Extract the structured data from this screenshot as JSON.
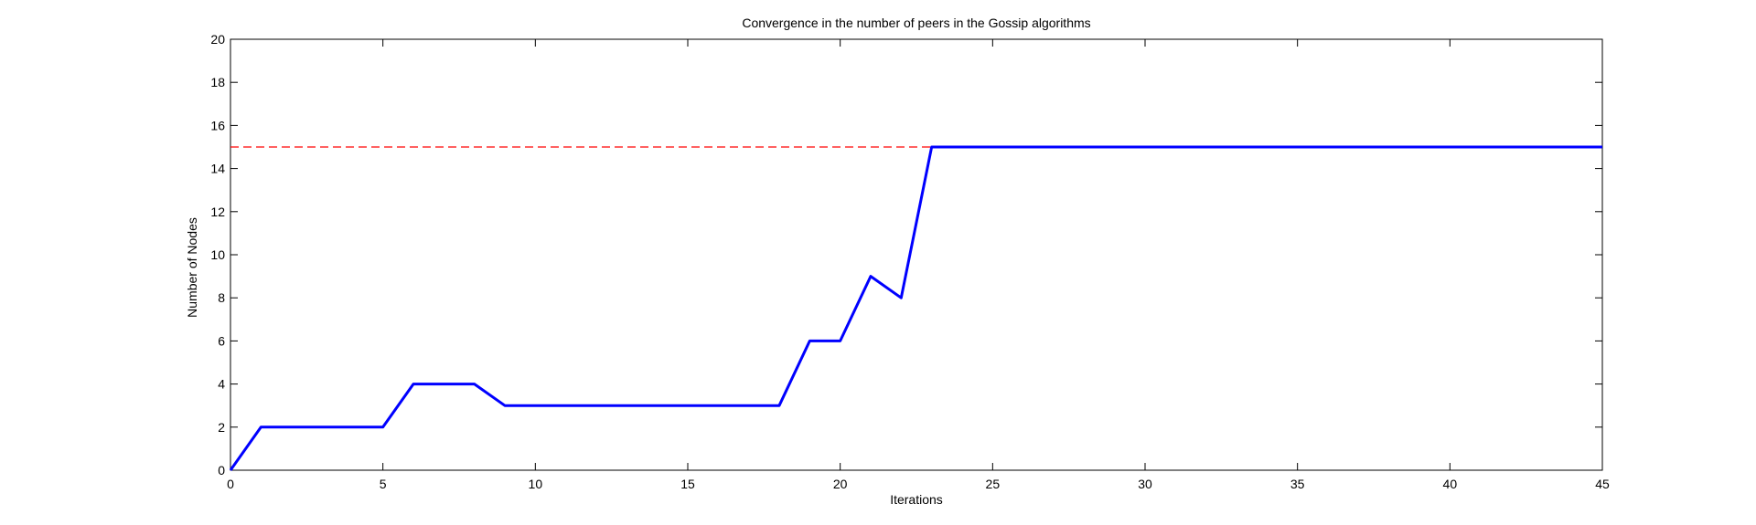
{
  "chart_data": {
    "type": "line",
    "title": "Convergence in the number of peers in the Gossip algorithms",
    "xlabel": "Iterations",
    "ylabel": "Number of Nodes",
    "xlim": [
      0,
      45
    ],
    "ylim": [
      0,
      20
    ],
    "xticks": [
      0,
      5,
      10,
      15,
      20,
      25,
      30,
      35,
      40,
      45
    ],
    "yticks": [
      0,
      2,
      4,
      6,
      8,
      10,
      12,
      14,
      16,
      18,
      20
    ],
    "grid": false,
    "series": [
      {
        "color": "#0000ff",
        "style": "solid",
        "x": [
          0,
          1,
          2,
          3,
          4,
          5,
          6,
          7,
          8,
          9,
          10,
          11,
          12,
          13,
          14,
          15,
          16,
          17,
          18,
          19,
          20,
          21,
          22,
          23,
          24,
          25,
          26,
          27,
          28,
          29,
          30,
          31,
          32,
          33,
          34,
          35,
          36,
          37,
          38,
          39,
          40,
          41,
          42,
          43,
          44,
          45
        ],
        "y": [
          0,
          2,
          2,
          2,
          2,
          2,
          4,
          4,
          4,
          3,
          3,
          3,
          3,
          3,
          3,
          3,
          3,
          3,
          3,
          6,
          6,
          9,
          8,
          15,
          15,
          15,
          15,
          15,
          15,
          15,
          15,
          15,
          15,
          15,
          15,
          15,
          15,
          15,
          15,
          15,
          15,
          15,
          15,
          15,
          15,
          15
        ]
      },
      {
        "color": "#ff0000",
        "style": "dashed",
        "x": [
          0,
          45
        ],
        "y": [
          15,
          15
        ]
      }
    ]
  }
}
